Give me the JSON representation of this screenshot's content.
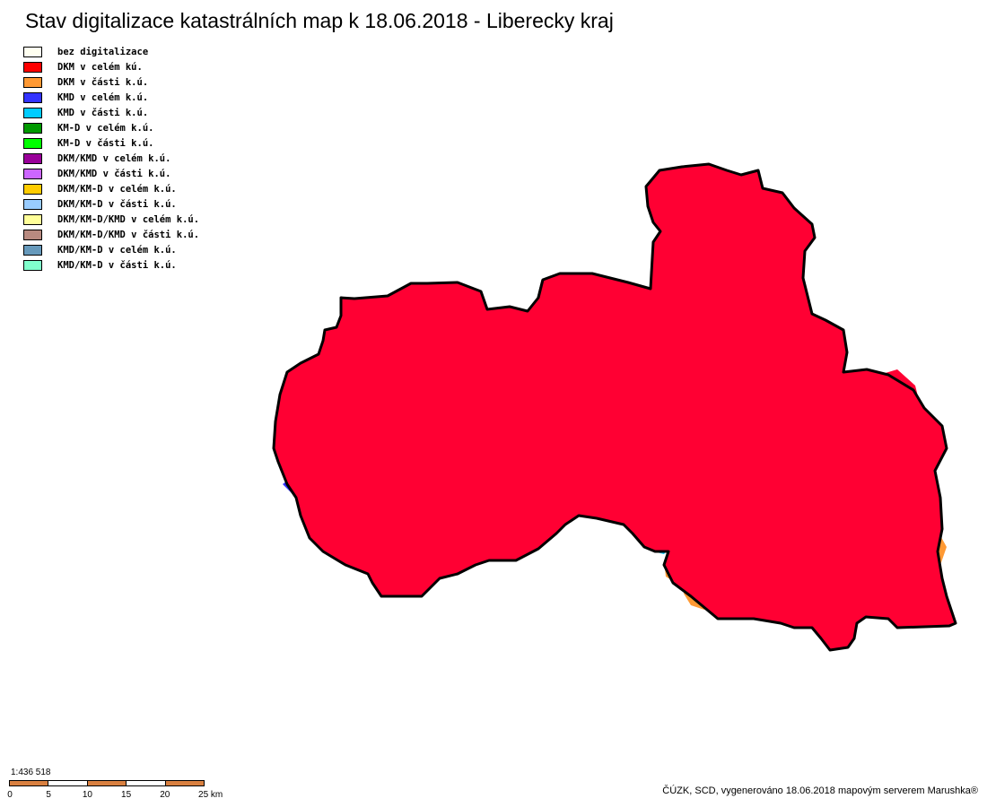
{
  "title": "Stav digitalizace katastrálních map k 18.06.2018 - Liberecky kraj",
  "legend": [
    {
      "label": "bez digitalizace",
      "color": "#fffff0"
    },
    {
      "label": "DKM v celém kú.",
      "color": "#ff0000"
    },
    {
      "label": "DKM v části k.ú.",
      "color": "#ff9933"
    },
    {
      "label": "KMD v celém k.ú.",
      "color": "#3333ff"
    },
    {
      "label": "KMD v části k.ú.",
      "color": "#00ccff"
    },
    {
      "label": "KM-D v celém k.ú.",
      "color": "#009900"
    },
    {
      "label": "KM-D v části k.ú.",
      "color": "#00ff00"
    },
    {
      "label": "DKM/KMD v celém k.ú.",
      "color": "#990099"
    },
    {
      "label": "DKM/KMD v části k.ú.",
      "color": "#cc66ff"
    },
    {
      "label": "DKM/KM-D v celém k.ú.",
      "color": "#ffcc00"
    },
    {
      "label": "DKM/KM-D v části k.ú.",
      "color": "#99ccff"
    },
    {
      "label": "DKM/KM-D/KMD v celém k.ú.",
      "color": "#ffff99"
    },
    {
      "label": "DKM/KM-D/KMD v části k.ú.",
      "color": "#b88a80"
    },
    {
      "label": "KMD/KM-D v celém k.ú.",
      "color": "#6699bb"
    },
    {
      "label": "KMD/KM-D v části k.ú.",
      "color": "#80ffcc"
    }
  ],
  "scale": {
    "ratio": "1:436 518",
    "ticks": [
      "0",
      "5",
      "10",
      "15",
      "20",
      "25 km"
    ],
    "segment_colors": [
      "#d98040",
      "#ffffff",
      "#d98040",
      "#ffffff",
      "#d98040"
    ]
  },
  "credit": "ČÚZK, SCD, vygenerováno 18.06.2018 mapovým serverem Marushka®",
  "map_colors": {
    "red": "#ff0033",
    "blue": "#3333ff",
    "purple": "#990099",
    "orange": "#ff9933",
    "cyan": "#00ccff",
    "white": "#ffffff"
  }
}
